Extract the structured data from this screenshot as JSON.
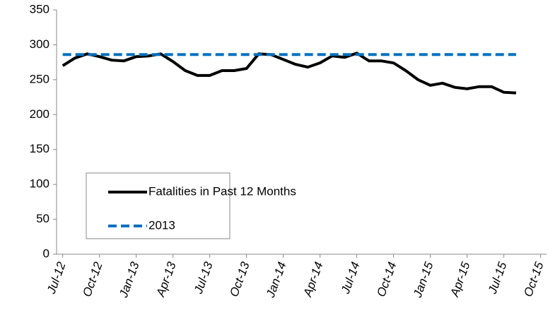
{
  "chart_data": {
    "type": "line",
    "categories": [
      "Jul-12",
      null,
      null,
      "Oct-12",
      null,
      null,
      "Jan-13",
      null,
      null,
      "Apr-13",
      null,
      null,
      "Jul-13",
      null,
      null,
      "Oct-13",
      null,
      null,
      "Jan-14",
      null,
      null,
      "Apr-14",
      null,
      null,
      "Jul-14",
      null,
      null,
      "Oct-14",
      null,
      null,
      "Jan-15",
      null,
      null,
      "Apr-15",
      null,
      null,
      "Jul-15",
      null,
      null,
      "Oct-15"
    ],
    "series": [
      {
        "name": "Fatalities in Past 12 Months",
        "color": "#000000",
        "dash": false,
        "values": [
          270,
          281,
          287,
          283,
          278,
          277,
          283,
          284,
          287,
          276,
          263,
          256,
          256,
          263,
          263,
          266,
          287,
          286,
          279,
          272,
          268,
          274,
          284,
          282,
          288,
          277,
          277,
          274,
          263,
          250,
          242,
          245,
          239,
          237,
          240,
          240,
          232,
          231,
          null,
          null
        ]
      },
      {
        "name": "2013",
        "color": "#0070c0",
        "dash": true,
        "values": [
          286,
          286,
          286,
          286,
          286,
          286,
          286,
          286,
          286,
          286,
          286,
          286,
          286,
          286,
          286,
          286,
          286,
          286,
          286,
          286,
          286,
          286,
          286,
          286,
          286,
          286,
          286,
          286,
          286,
          286,
          286,
          286,
          286,
          286,
          286,
          286,
          286,
          286,
          null,
          null
        ]
      }
    ],
    "ylim": [
      0,
      350
    ],
    "yticks": [
      0,
      50,
      100,
      150,
      200,
      250,
      300,
      350
    ],
    "grid": false
  }
}
